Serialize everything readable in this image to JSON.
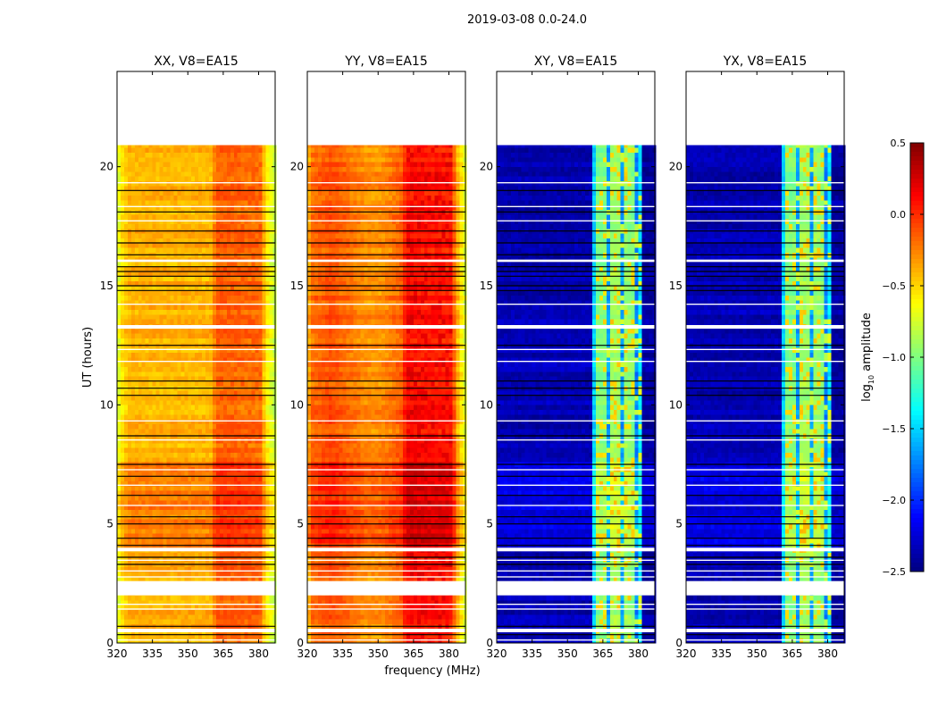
{
  "chart_data": {
    "type": "heatmap",
    "title": "2019-03-08 0.0-24.0",
    "xlabel": "frequency (MHz)",
    "ylabel": "UT (hours)",
    "xlim": [
      320,
      387
    ],
    "ylim": [
      0,
      24
    ],
    "xticks": [
      "320",
      "335",
      "350",
      "365",
      "380"
    ],
    "xtick_values": [
      320,
      335,
      350,
      365,
      380
    ],
    "yticks": [
      "0",
      "5",
      "10",
      "15",
      "20"
    ],
    "ytick_values": [
      0,
      5,
      10,
      15,
      20
    ],
    "data_end_hour": 20.9,
    "colorbar": {
      "label_prefix": "log",
      "label_sub": "10",
      "label_suffix": " amplitude",
      "range": [
        -2.5,
        0.5
      ],
      "ticks": [
        "0.5",
        "0.0",
        "−0.5",
        "−1.0",
        "−1.5",
        "−2.0",
        "−2.5"
      ],
      "tick_values": [
        0.5,
        0.0,
        -0.5,
        -1.0,
        -1.5,
        -2.0,
        -2.5
      ],
      "colormap": "jet"
    },
    "flagged_white_hours": [
      [
        2.0,
        2.6
      ],
      [
        0.45,
        0.6
      ],
      [
        3.85,
        4.0
      ],
      [
        13.2,
        13.35
      ],
      [
        0.1,
        0.15
      ],
      [
        1.4,
        1.45
      ],
      [
        1.6,
        1.65
      ],
      [
        2.75,
        2.8
      ],
      [
        3.0,
        3.05
      ],
      [
        3.45,
        3.5
      ],
      [
        5.75,
        5.8
      ],
      [
        6.6,
        6.65
      ],
      [
        7.25,
        7.3
      ],
      [
        8.5,
        8.55
      ],
      [
        9.3,
        9.35
      ],
      [
        11.8,
        11.85
      ],
      [
        12.3,
        12.35
      ],
      [
        14.2,
        14.25
      ],
      [
        17.7,
        17.75
      ],
      [
        18.3,
        18.35
      ],
      [
        19.3,
        19.35
      ],
      [
        16.0,
        16.1
      ]
    ],
    "flagged_black_hours": [
      0.35,
      0.7,
      3.3,
      3.6,
      4.1,
      4.4,
      5.0,
      5.3,
      6.2,
      7.0,
      7.5,
      8.7,
      10.4,
      10.7,
      11.0,
      12.5,
      14.8,
      15.0,
      15.4,
      15.6,
      15.8,
      16.3,
      16.8,
      17.3,
      18.1,
      19.0
    ],
    "panels": [
      {
        "title": "XX, V8=EA15",
        "profile": [
          [
            320,
            -0.75
          ],
          [
            322,
            -0.55
          ],
          [
            325,
            -0.4
          ],
          [
            360,
            -0.4
          ],
          [
            362,
            -0.15
          ],
          [
            381,
            -0.2
          ],
          [
            383,
            -0.55
          ],
          [
            387,
            -0.8
          ]
        ],
        "rfi_band": [
          362,
          381
        ],
        "rfi_level": -0.05
      },
      {
        "title": "YY, V8=EA15",
        "profile": [
          [
            320,
            -0.45
          ],
          [
            322,
            -0.2
          ],
          [
            330,
            -0.1
          ],
          [
            345,
            -0.3
          ],
          [
            352,
            -0.3
          ],
          [
            360,
            -0.15
          ],
          [
            362,
            0.1
          ],
          [
            381,
            0.05
          ],
          [
            384,
            -0.45
          ],
          [
            387,
            -0.75
          ]
        ],
        "rfi_band": [
          362,
          381
        ],
        "rfi_level": 0.3
      },
      {
        "title": "XY, V8=EA15",
        "profile": [
          [
            320,
            -2.35
          ],
          [
            360,
            -2.35
          ],
          [
            362,
            -1.0
          ],
          [
            366,
            -1.0
          ],
          [
            367,
            -1.9
          ],
          [
            368,
            -0.9
          ],
          [
            372,
            -0.9
          ],
          [
            373,
            -1.9
          ],
          [
            374,
            -0.9
          ],
          [
            378,
            -1.0
          ],
          [
            379,
            -1.9
          ],
          [
            380,
            -1.3
          ],
          [
            381,
            -1.5
          ],
          [
            382,
            -2.4
          ],
          [
            387,
            -2.4
          ]
        ],
        "rfi_band": [
          362,
          381
        ],
        "rfi_level": -0.2
      },
      {
        "title": "YX, V8=EA15",
        "profile": [
          [
            320,
            -2.35
          ],
          [
            360,
            -2.35
          ],
          [
            362,
            -1.0
          ],
          [
            366,
            -1.0
          ],
          [
            367,
            -1.9
          ],
          [
            368,
            -0.9
          ],
          [
            372,
            -0.9
          ],
          [
            373,
            -1.9
          ],
          [
            374,
            -0.9
          ],
          [
            378,
            -1.0
          ],
          [
            379,
            -1.9
          ],
          [
            380,
            -1.3
          ],
          [
            381,
            -1.5
          ],
          [
            382,
            -2.4
          ],
          [
            387,
            -2.4
          ]
        ],
        "rfi_band": [
          362,
          381
        ],
        "rfi_level": -0.2
      }
    ]
  }
}
